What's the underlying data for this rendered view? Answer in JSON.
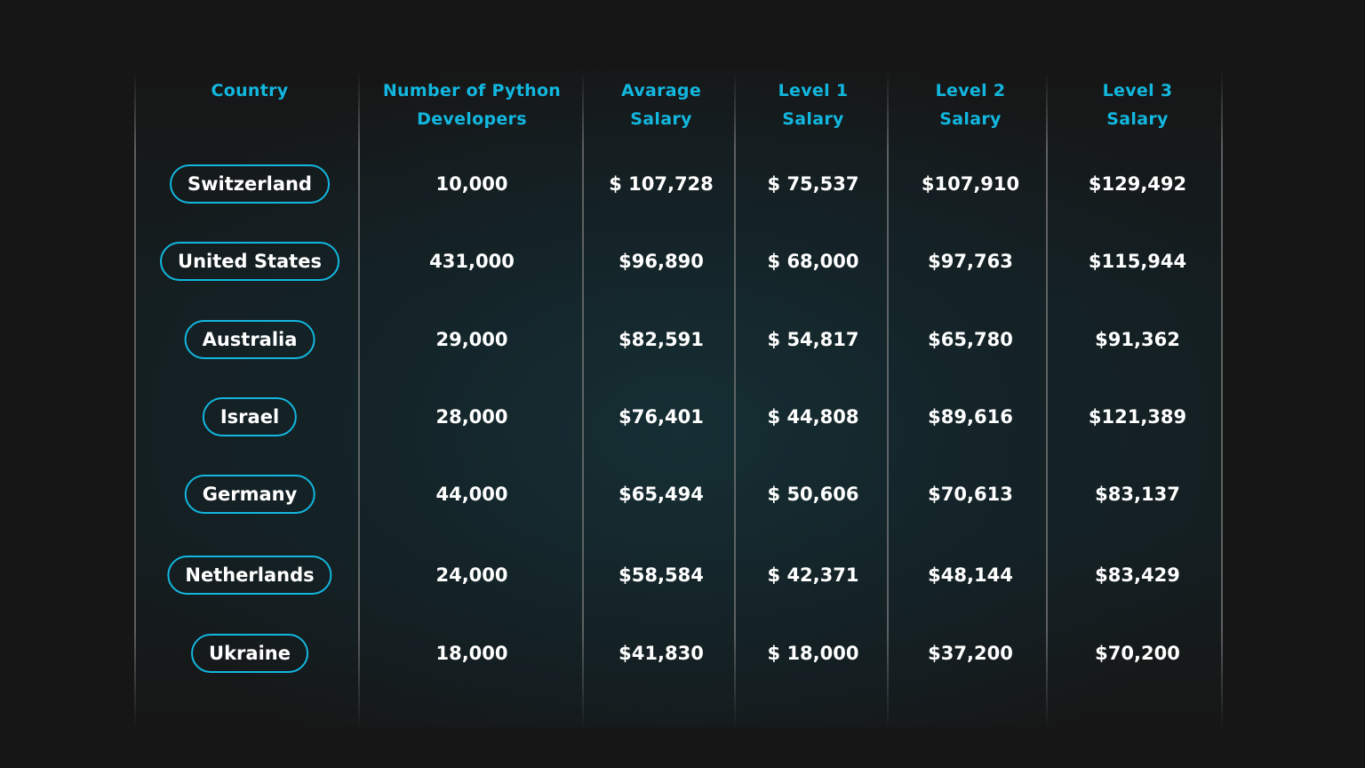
{
  "chart_data": {
    "type": "table",
    "columns": [
      [
        "Country"
      ],
      [
        "Number of Python",
        "Developers"
      ],
      [
        "Avarage",
        "Salary"
      ],
      [
        "Level 1",
        "Salary"
      ],
      [
        "Level 2",
        "Salary"
      ],
      [
        "Level 3",
        "Salary"
      ]
    ],
    "rows": [
      [
        "Switzerland",
        "10,000",
        "$ 107,728",
        "$ 75,537",
        "$107,910",
        "$129,492"
      ],
      [
        "United States",
        "431,000",
        "$96,890",
        "$ 68,000",
        "$97,763",
        "$115,944"
      ],
      [
        "Australia",
        "29,000",
        "$82,591",
        "$ 54,817",
        "$65,780",
        "$91,362"
      ],
      [
        "Israel",
        "28,000",
        "$76,401",
        "$ 44,808",
        "$89,616",
        "$121,389"
      ],
      [
        "Germany",
        "44,000",
        "$65,494",
        "$ 50,606",
        "$70,613",
        "$83,137"
      ],
      [
        "Netherlands",
        "24,000",
        "$58,584",
        "$ 42,371",
        "$48,144",
        "$83,429"
      ],
      [
        "Ukraine",
        "18,000",
        "$41,830",
        "$ 18,000",
        "$37,200",
        "$70,200"
      ]
    ]
  },
  "colors": {
    "accent": "#12b7df",
    "text": "#ffffff",
    "background": "#161616"
  }
}
